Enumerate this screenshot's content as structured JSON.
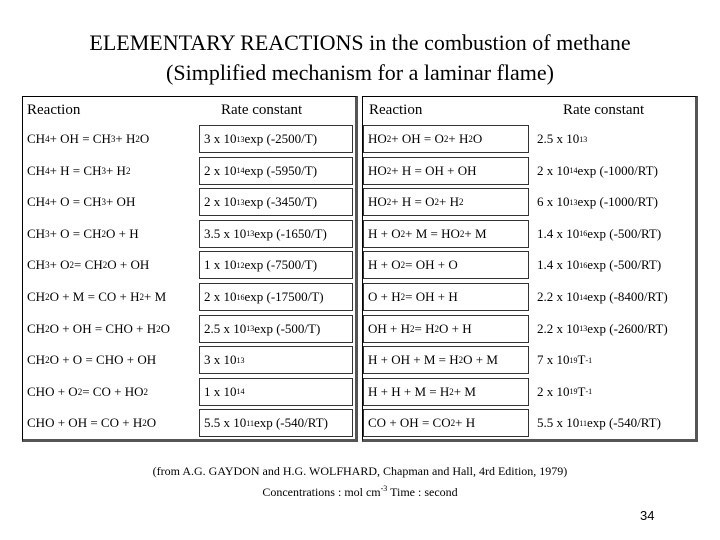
{
  "title_line1": "ELEMENTARY REACTIONS in the combustion of methane",
  "title_line2": "(Simplified mechanism for a laminar flame)",
  "left": {
    "h_reaction": "Reaction",
    "h_rate": "Rate constant",
    "rows": [
      {
        "r": "CH4 + OH = CH3 + H2O",
        "k": "3 x 10^13 exp (-2500/T)"
      },
      {
        "r": "CH4 + H = CH3 + H2",
        "k": "2 x 10^14 exp (-5950/T)"
      },
      {
        "r": "CH4 + O = CH3 + OH",
        "k": "2 x 10^13 exp (-3450/T)"
      },
      {
        "r": "CH3 + O = CH2O + H",
        "k": "3.5 x 10^13 exp (-1650/T)"
      },
      {
        "r": "CH3 + O2 = CH2O + OH",
        "k": "1 x 10^12 exp (-7500/T)"
      },
      {
        "r": "CH2O + M = CO + H2 + M",
        "k": "2 x 10^16 exp (-17500/T)"
      },
      {
        "r": "CH2O + OH = CHO + H2O",
        "k": "2.5 x 10^13 exp (-500/T)"
      },
      {
        "r": "CH2O + O = CHO + OH",
        "k": "3 x 10^13"
      },
      {
        "r": "CHO + O2 = CO + HO2",
        "k": "1 x 10^14"
      },
      {
        "r": "CHO + OH = CO + H2O",
        "k": "5.5 x 10^11 exp (-540/RT)"
      }
    ]
  },
  "right": {
    "h_reaction": "Reaction",
    "h_rate": "Rate constant",
    "rows": [
      {
        "r": "HO2 + OH = O2 + H2O",
        "k": "2.5 x 10^13"
      },
      {
        "r": "HO2 + H = OH + OH",
        "k": "2 x 10^14 exp (-1000/RT)"
      },
      {
        "r": "HO2 + H = O2 + H2",
        "k": "6 x 10^13 exp (-1000/RT)"
      },
      {
        "r": "H + O2 + M = HO2 + M",
        "k": "1.4 x 10^16 exp (-500/RT)"
      },
      {
        "r": "H + O2 = OH + O",
        "k": "1.4 x 10^16 exp (-500/RT)"
      },
      {
        "r": "O + H2 = OH + H",
        "k": "2.2 x 10^14 exp (-8400/RT)"
      },
      {
        "r": "OH + H2 = H2O + H",
        "k": "2.2 x 10^13 exp (-2600/RT)"
      },
      {
        "r": "H + OH + M = H2O + M",
        "k": "7 x 10^19 T^-1"
      },
      {
        "r": "H + H + M = H2 + M",
        "k": "2 x 10^19 T^-1"
      },
      {
        "r": "CO + OH = CO2 + H",
        "k": "5.5 x 10^11 exp (-540/RT)"
      }
    ]
  },
  "ref_line1": "(from A.G. GAYDON and H.G. WOLFHARD, Chapman and Hall, 4rd Edition, 1979)",
  "ref_line2": "Concentrations : mol cm-3    Time : second",
  "page_number": "34"
}
